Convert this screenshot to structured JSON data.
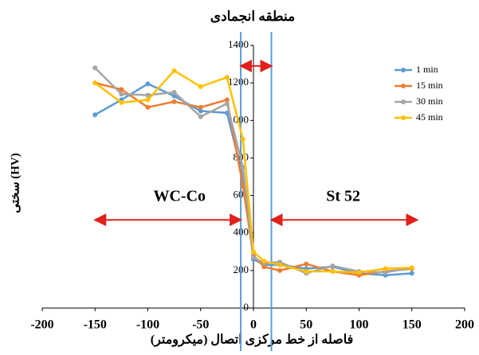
{
  "chart_data": {
    "type": "line",
    "title": "منطقه انجمادی",
    "x_label": "فاصله از خط مرکزی اتصال (میکرومتر)",
    "y_label": "سختی (HV)",
    "x": [
      -150,
      -125,
      -100,
      -75,
      -50,
      -25,
      -10,
      0,
      10,
      25,
      50,
      75,
      100,
      125,
      150
    ],
    "series": [
      {
        "name": "1 min",
        "color": "#5b9bd5",
        "values": [
          1030,
          1110,
          1195,
          1130,
          1050,
          1040,
          700,
          260,
          230,
          230,
          210,
          220,
          185,
          175,
          185
        ]
      },
      {
        "name": "15 min",
        "color": "#ed7d31",
        "values": [
          1200,
          1165,
          1070,
          1100,
          1070,
          1110,
          650,
          280,
          220,
          200,
          235,
          195,
          175,
          195,
          210
        ]
      },
      {
        "name": "30 min",
        "color": "#a5a5a5",
        "values": [
          1280,
          1140,
          1135,
          1150,
          1020,
          1090,
          750,
          270,
          240,
          245,
          185,
          225,
          195,
          190,
          215
        ]
      },
      {
        "name": "45 min",
        "color": "#ffc000",
        "values": [
          1200,
          1095,
          1110,
          1265,
          1180,
          1230,
          900,
          300,
          250,
          230,
          195,
          195,
          190,
          210,
          215
        ]
      }
    ],
    "xlim": [
      -200,
      200
    ],
    "ylim": [
      0,
      1400
    ],
    "xticks": [
      -200,
      -150,
      -100,
      -50,
      0,
      50,
      100,
      150,
      200
    ],
    "yticks": [
      0,
      200,
      400,
      600,
      800,
      1000,
      1200,
      1400
    ],
    "boundaries": {
      "color": "#5b9bd5",
      "x": [
        -12,
        17
      ]
    },
    "arrows": {
      "color": "#e0201b",
      "items": [
        {
          "text": "WC-Co",
          "x": [
            -150,
            -12
          ],
          "y": 470,
          "text_x": -70,
          "text_y": 590
        },
        {
          "text": "St 52",
          "x": [
            17,
            155
          ],
          "y": 470,
          "text_x": 85,
          "text_y": 590
        },
        {
          "x": [
            -12,
            17
          ],
          "y": 1290
        }
      ]
    },
    "legend": "upper right"
  }
}
